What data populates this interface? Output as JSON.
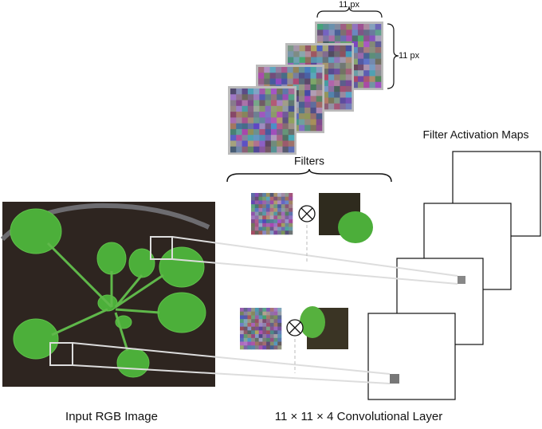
{
  "labels": {
    "filter_width": "11 px",
    "filter_height": "11 px",
    "filters": "Filters",
    "activation_maps": "Filter Activation Maps",
    "input_image": "Input RGB Image",
    "conv_layer": "11 × 11 × 4 Convolutional Layer"
  }
}
